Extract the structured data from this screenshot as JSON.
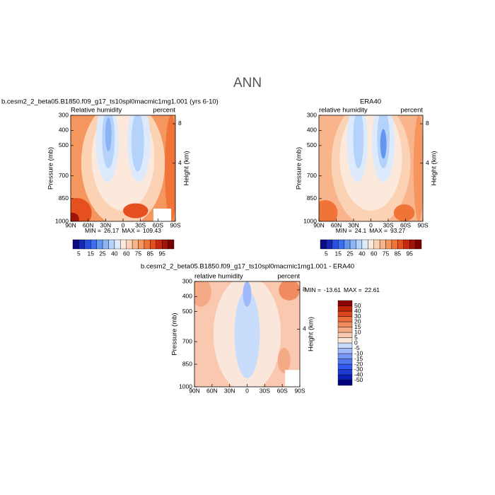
{
  "title": "ANN",
  "chart_data": [
    {
      "type": "contour",
      "title": "b.cesm2_2_beta05.B1850.f09_g17_ts10spl0macmic1mg1.001 (yrs 6-10)",
      "subtitle_left": "Relative humidity",
      "subtitle_right": "percent",
      "ylabel": "Pressure (mb)",
      "y2label": "Height (km)",
      "categories": [
        "90N",
        "60N",
        "30N",
        "0",
        "30S",
        "60S",
        "90S"
      ],
      "ylim": [
        300,
        1000
      ],
      "yticks": [
        300,
        400,
        500,
        700,
        850,
        1000
      ],
      "y2ticks": [
        8,
        4
      ],
      "stats": {
        "min_label": "MIN =",
        "min": 26.17,
        "max_label": "MAX =",
        "max": 109.43
      },
      "colorbar": {
        "orientation": "horizontal",
        "ticks": [
          5,
          15,
          25,
          40,
          60,
          75,
          85,
          95
        ],
        "colors": [
          "#0a0a82",
          "#1428b4",
          "#2850dc",
          "#3c6ef0",
          "#6496f0",
          "#8cb4f5",
          "#b4d2fa",
          "#dceafc",
          "#fde8dc",
          "#fcd2b4",
          "#f9b48c",
          "#f5965f",
          "#f07337",
          "#e6501e",
          "#c8280f",
          "#a01405",
          "#780000"
        ]
      }
    },
    {
      "type": "contour",
      "title": "ERA40",
      "subtitle_left": "relative humidity",
      "subtitle_right": "percent",
      "ylabel": "Pressure (mb)",
      "y2label": "Height (km)",
      "categories": [
        "90N",
        "60N",
        "30N",
        "0",
        "30S",
        "60S",
        "90S"
      ],
      "ylim": [
        300,
        1000
      ],
      "yticks": [
        300,
        400,
        500,
        700,
        850,
        1000
      ],
      "y2ticks": [
        8,
        4
      ],
      "stats": {
        "min_label": "MIN =",
        "min": 24.1,
        "max_label": "MAX =",
        "max": 93.27
      },
      "colorbar": {
        "orientation": "horizontal",
        "ticks": [
          5,
          15,
          25,
          40,
          60,
          75,
          85,
          95
        ],
        "colors": [
          "#0a0a82",
          "#1428b4",
          "#2850dc",
          "#3c6ef0",
          "#6496f0",
          "#8cb4f5",
          "#b4d2fa",
          "#dceafc",
          "#fde8dc",
          "#fcd2b4",
          "#f9b48c",
          "#f5965f",
          "#f07337",
          "#e6501e",
          "#c8280f",
          "#a01405",
          "#780000"
        ]
      }
    },
    {
      "type": "contour",
      "title": "b.cesm2_2_beta05.B1850.f09_g17_ts10spl0macmic1mg1.001 - ERA40",
      "subtitle_left": "relative humidity",
      "subtitle_right": "percent",
      "ylabel": "Pressure (mb)",
      "y2label": "Height (km)",
      "categories": [
        "90N",
        "60N",
        "30N",
        "0",
        "30S",
        "60S",
        "90S"
      ],
      "ylim": [
        300,
        1000
      ],
      "yticks": [
        300,
        400,
        500,
        700,
        850,
        1000
      ],
      "y2ticks": [
        8,
        4
      ],
      "stats": {
        "min_label": "MIN =",
        "min": -13.61,
        "max_label": "MAX =",
        "max": 22.61
      },
      "colorbar": {
        "orientation": "vertical",
        "ticks": [
          -50,
          -40,
          -30,
          -20,
          -15,
          -10,
          -5,
          0,
          5,
          10,
          15,
          20,
          30,
          40,
          50
        ],
        "colors": [
          "#00007f",
          "#0a1eb4",
          "#1e3cd2",
          "#325af0",
          "#5078f0",
          "#7896f5",
          "#a0b9fa",
          "#c8dcfc",
          "#fbe6dc",
          "#f9c8af",
          "#f5aa87",
          "#f08c5f",
          "#eb6e3c",
          "#dc461e",
          "#be230a",
          "#8c0000"
        ]
      }
    }
  ]
}
